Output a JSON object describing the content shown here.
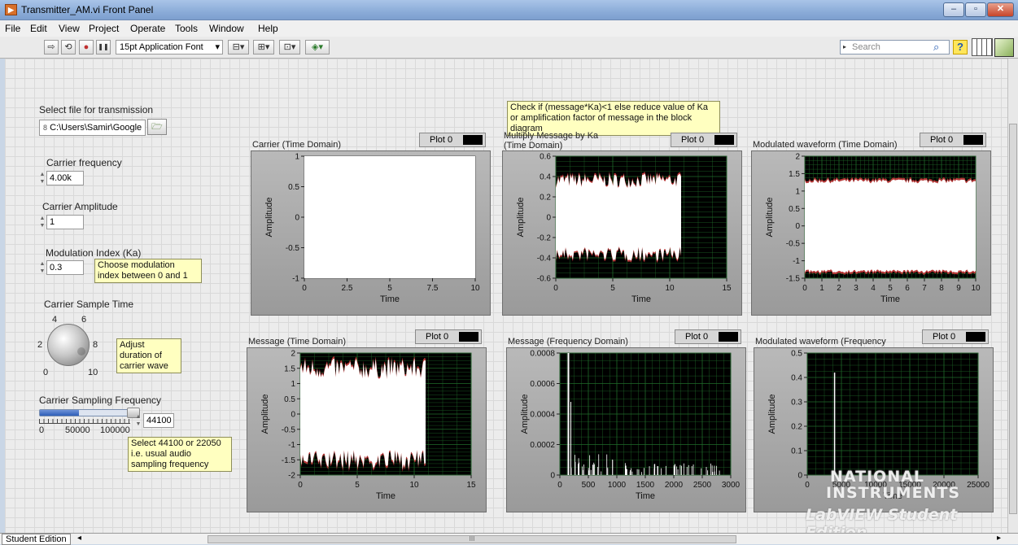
{
  "window": {
    "title": "Transmitter_AM.vi Front Panel",
    "app_icon": "labview-vi-icon",
    "buttons": {
      "minimize": "–",
      "maximize": "▫",
      "close": "✕"
    }
  },
  "menu": [
    "File",
    "Edit",
    "View",
    "Project",
    "Operate",
    "Tools",
    "Window",
    "Help"
  ],
  "toolbar": {
    "run": "⇨",
    "run_continuous": "⟲",
    "abort": "●",
    "pause": "❚❚",
    "font": "15pt Application Font",
    "align": "⊟▾",
    "distribute": "⊞▾",
    "resize": "⊡▾",
    "reorder": "◈▾",
    "search_placeholder": "Search",
    "help": "?"
  },
  "controls": {
    "file": {
      "label": "Select file for transmission",
      "path": "C:\\Users\\Samir\\Google",
      "prefix": "8"
    },
    "carrier_freq": {
      "label": "Carrier frequency",
      "value": "4.00k"
    },
    "carrier_amp": {
      "label": "Carrier Amplitude",
      "value": "1"
    },
    "mod_index": {
      "label": "Modulation Index (Ka)",
      "value": "0.3",
      "note": "Choose modulation index between 0 and 1"
    },
    "sample_time": {
      "label": "Carrier Sample Time",
      "ticks": [
        "0",
        "2",
        "4",
        "6",
        "8",
        "10"
      ],
      "note": "Adjust duration of carrier wave"
    },
    "sampling_freq": {
      "label": "Carrier Sampling Frequency",
      "scale": [
        "0",
        "50000",
        "100000"
      ],
      "value": "44100",
      "level": 0.44,
      "note": "Select 44100 or 22050 i.e. usual audio sampling frequency"
    }
  },
  "ka_note": "Check if (message*Ka)<1 else reduce value of Ka or amplification factor of message in the block diagram",
  "legend_label": "Plot 0",
  "colors": {
    "plot_bg_black": "#000000",
    "plot_bg_white": "#ffffff",
    "grid": "#1f6b2a",
    "trace": "#ffffff",
    "trace_edge": "#c83c3c",
    "note_bg": "#ffffc0"
  },
  "graphs": [
    {
      "id": "carrier",
      "title": "Carrier (Time Domain)",
      "xlabel": "Time",
      "ylabel": "Amplitude",
      "bg": "white",
      "xticks": [
        "0",
        "2.5",
        "5",
        "7.5",
        "10"
      ],
      "yticks": [
        "1",
        "0.5",
        "0",
        "-0.5",
        "-1"
      ],
      "xrange": [
        0,
        10
      ],
      "yrange": [
        -1,
        1
      ],
      "kind": "fill",
      "fill_x": [
        0,
        10
      ],
      "fill_y": [
        -1,
        1
      ]
    },
    {
      "id": "mult",
      "title_lines": [
        "Multiply Message by Ka",
        "(Time Domain)"
      ],
      "xlabel": "Time",
      "ylabel": "Amplitude",
      "bg": "black",
      "xticks": [
        "0",
        "5",
        "10",
        "15"
      ],
      "yticks": [
        "0.6",
        "0.4",
        "0.2",
        "0",
        "-0.2",
        "-0.4",
        "-0.6"
      ],
      "xrange": [
        0,
        15
      ],
      "yrange": [
        -0.6,
        0.6
      ],
      "kind": "noise",
      "noise_x": [
        0,
        11
      ],
      "noise_y": [
        -0.45,
        0.45
      ],
      "noise_inner": [
        -0.22,
        0.22
      ]
    },
    {
      "id": "modulated",
      "title": "Modulated waveform (Time Domain)",
      "xlabel": "Time",
      "ylabel": "Amplitude",
      "bg": "black",
      "xticks": [
        "0",
        "1",
        "2",
        "3",
        "4",
        "5",
        "6",
        "7",
        "8",
        "9",
        "10"
      ],
      "yticks": [
        "2",
        "1.5",
        "1",
        "0.5",
        "0",
        "-0.5",
        "-1",
        "-1.5"
      ],
      "xrange": [
        0,
        10
      ],
      "yrange": [
        -1.5,
        2
      ],
      "kind": "noise",
      "noise_x": [
        0,
        10
      ],
      "noise_y": [
        -1.4,
        1.4
      ],
      "noise_inner": [
        -1.25,
        1.2
      ]
    },
    {
      "id": "message",
      "title": "Message (Time Domain)",
      "xlabel": "Time",
      "ylabel": "Amplitude",
      "bg": "black",
      "xticks": [
        "0",
        "5",
        "10",
        "15"
      ],
      "yticks": [
        "2",
        "1.5",
        "1",
        "0.5",
        "0",
        "-0.5",
        "-1",
        "-1.5",
        "-2"
      ],
      "xrange": [
        0,
        15
      ],
      "yrange": [
        -2,
        2
      ],
      "kind": "noise",
      "noise_x": [
        0,
        11
      ],
      "noise_y": [
        -1.9,
        1.9
      ],
      "noise_inner": [
        -0.85,
        0.8
      ]
    },
    {
      "id": "msg_freq",
      "title": "Message (Frequency Domain)",
      "xlabel": "Time",
      "ylabel": "Amplitude",
      "bg": "black",
      "xticks": [
        "0",
        "500",
        "1000",
        "1500",
        "2000",
        "2500",
        "3000"
      ],
      "yticks": [
        "0.0008",
        "0.0006",
        "0.0004",
        "0.0002",
        "0"
      ],
      "xrange": [
        0,
        3000
      ],
      "yrange": [
        0,
        0.0008
      ],
      "kind": "spectrum",
      "peak_x": 150,
      "peak_y": 0.0008
    },
    {
      "id": "mod_freq",
      "title": "Modulated waveform (Frequency",
      "xlabel": "Time",
      "ylabel": "Amplitude",
      "bg": "black",
      "xticks": [
        "0",
        "5000",
        "10000",
        "15000",
        "20000",
        "25000"
      ],
      "yticks": [
        "0.5",
        "0.4",
        "0.3",
        "0.2",
        "0.1",
        "0"
      ],
      "xrange": [
        0,
        25000
      ],
      "yrange": [
        0,
        0.5
      ],
      "kind": "spike",
      "peak_x": 4000,
      "peak_y": 0.42
    }
  ],
  "watermark": {
    "line1": "NATIONAL",
    "line2": "INSTRUMENTS",
    "line3": "LabVIEW Student Edition"
  },
  "status": {
    "edition": "Student Edition",
    "scroll_left": "◂",
    "scroll_mid": "III",
    "scroll_right": "▸"
  }
}
